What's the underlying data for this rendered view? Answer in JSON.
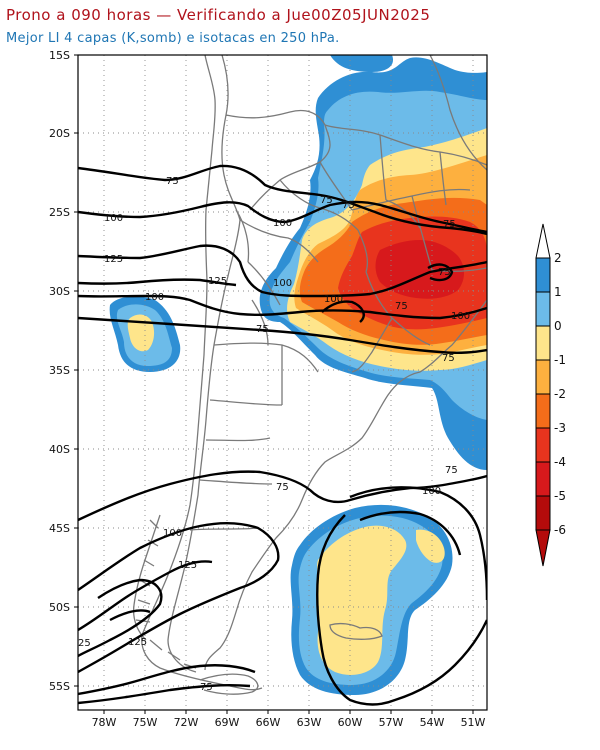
{
  "header": {
    "title": "Prono a 090 horas — Verificando a Jue00Z05JUN2025",
    "subtitle": "Mejor LI 4 capas (K,somb) e isotacas en 250 hPa."
  },
  "map": {
    "lat_labels": [
      "15S",
      "20S",
      "25S",
      "30S",
      "35S",
      "40S",
      "45S",
      "50S",
      "55S"
    ],
    "lon_labels": [
      "78W",
      "75W",
      "72W",
      "69W",
      "66W",
      "63W",
      "60W",
      "57W",
      "54W",
      "51W"
    ],
    "isotach_labels": [
      "75",
      "100",
      "125",
      "125",
      "100",
      "75",
      "75",
      "75",
      "100",
      "75",
      "75",
      "75",
      "100",
      "100",
      "75",
      "75",
      "100",
      "100",
      "125",
      "25",
      "125",
      "75",
      "75",
      "100"
    ],
    "fill_colors": {
      "lt_minus5": "#b40b0b",
      "minus5_minus4": "#d7191c",
      "minus4_minus3": "#e8341e",
      "minus3_minus2": "#f46d1a",
      "minus2_minus1": "#fdb03f",
      "minus1_0": "#fee58b",
      "0_1": "#6cbbe9",
      "1_2": "#2f8fd4",
      "gt_2": "#ffffff"
    },
    "coast_color": "#7a7a7a"
  },
  "colorbar": {
    "ticks": [
      "2",
      "1",
      "0",
      "-1",
      "-2",
      "-3",
      "-4",
      "-5",
      "-6"
    ],
    "colors": [
      "#2f8fd4",
      "#6cbbe9",
      "#fee58b",
      "#fdb03f",
      "#f46d1a",
      "#e8341e",
      "#d7191c",
      "#b40b0b"
    ]
  }
}
